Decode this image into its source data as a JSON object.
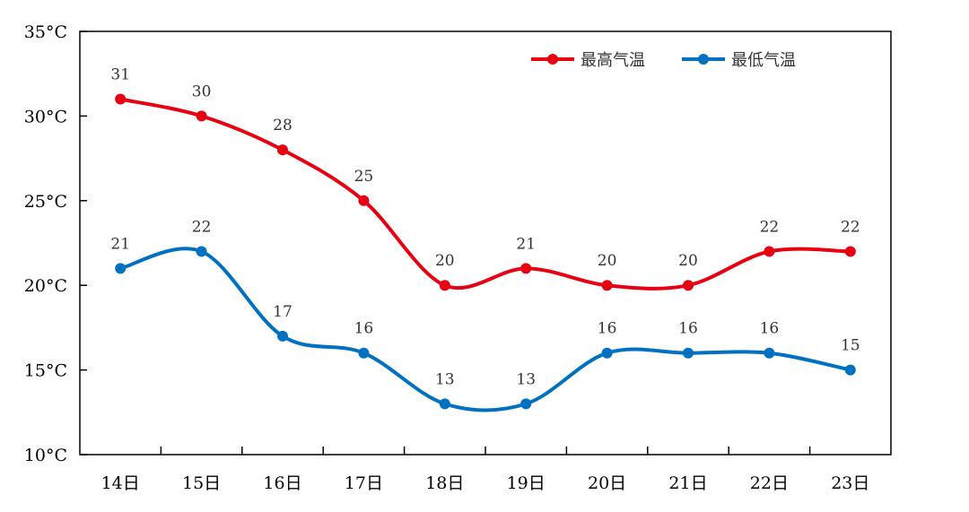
{
  "chart_data": {
    "type": "line",
    "categories": [
      "14日",
      "15日",
      "16日",
      "17日",
      "18日",
      "19日",
      "20日",
      "21日",
      "22日",
      "23日"
    ],
    "series": [
      {
        "name": "最高气温",
        "color": "#e60012",
        "values": [
          31,
          30,
          28,
          25,
          20,
          21,
          20,
          20,
          22,
          22
        ]
      },
      {
        "name": "最低气温",
        "color": "#0070c0",
        "values": [
          21,
          22,
          17,
          16,
          13,
          13,
          16,
          16,
          16,
          15
        ]
      }
    ],
    "yticks": [
      {
        "value": 10,
        "label": "10°C"
      },
      {
        "value": 15,
        "label": "15°C"
      },
      {
        "value": 20,
        "label": "20°C"
      },
      {
        "value": 25,
        "label": "25°C"
      },
      {
        "value": 30,
        "label": "30°C"
      },
      {
        "value": 35,
        "label": "35°C"
      }
    ],
    "ylim": [
      10,
      35
    ],
    "smooth": true,
    "data_labels": true,
    "grid": false,
    "legend_position": "top-right"
  }
}
